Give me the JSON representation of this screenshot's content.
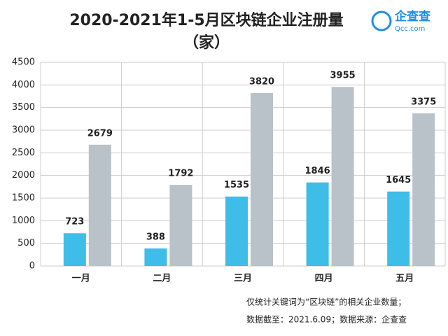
{
  "chart_data": {
    "type": "bar",
    "title": "2020-2021年1-5月区块链企业注册量",
    "subtitle": "（家）",
    "logo": {
      "name": "企查查",
      "site": "Qcc.com"
    },
    "categories": [
      "一月",
      "二月",
      "三月",
      "四月",
      "五月"
    ],
    "series": [
      {
        "color": "#3dbde8",
        "values": [
          723,
          388,
          1535,
          1846,
          1645
        ]
      },
      {
        "color": "#b9c1c9",
        "values": [
          2679,
          1792,
          3820,
          3955,
          3375
        ]
      }
    ],
    "ylim": [
      0,
      4500
    ],
    "yticks": [
      0,
      500,
      1000,
      1500,
      2000,
      2500,
      3000,
      3500,
      4000,
      4500
    ],
    "grid": true,
    "notes": [
      "仅统计关键词为“区块链”的相关企业数量；",
      "数据截至：2021.6.09；数据来源：企查查"
    ]
  }
}
